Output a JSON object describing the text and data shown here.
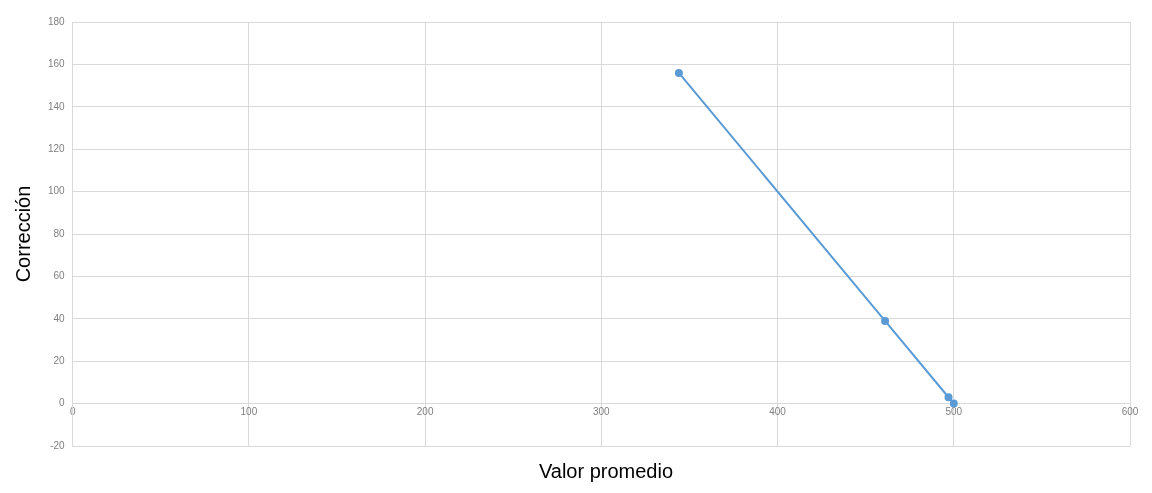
{
  "chart_data": {
    "type": "line",
    "xlabel": "Valor promedio",
    "ylabel": "Corrección",
    "x": [
      344,
      461,
      497,
      500
    ],
    "series": [
      {
        "color": "#5b9bd5",
        "values": [
          156,
          39,
          3,
          0
        ]
      }
    ],
    "xlim": [
      0,
      600
    ],
    "xticks": [
      0,
      100,
      200,
      300,
      400,
      500,
      600
    ],
    "ylim": [
      -20,
      180
    ],
    "yticks": [
      -20,
      0,
      20,
      40,
      60,
      80,
      100,
      120,
      140,
      160,
      180
    ],
    "grid": true,
    "legend": false,
    "marker": "circle",
    "line_style": "solid"
  }
}
